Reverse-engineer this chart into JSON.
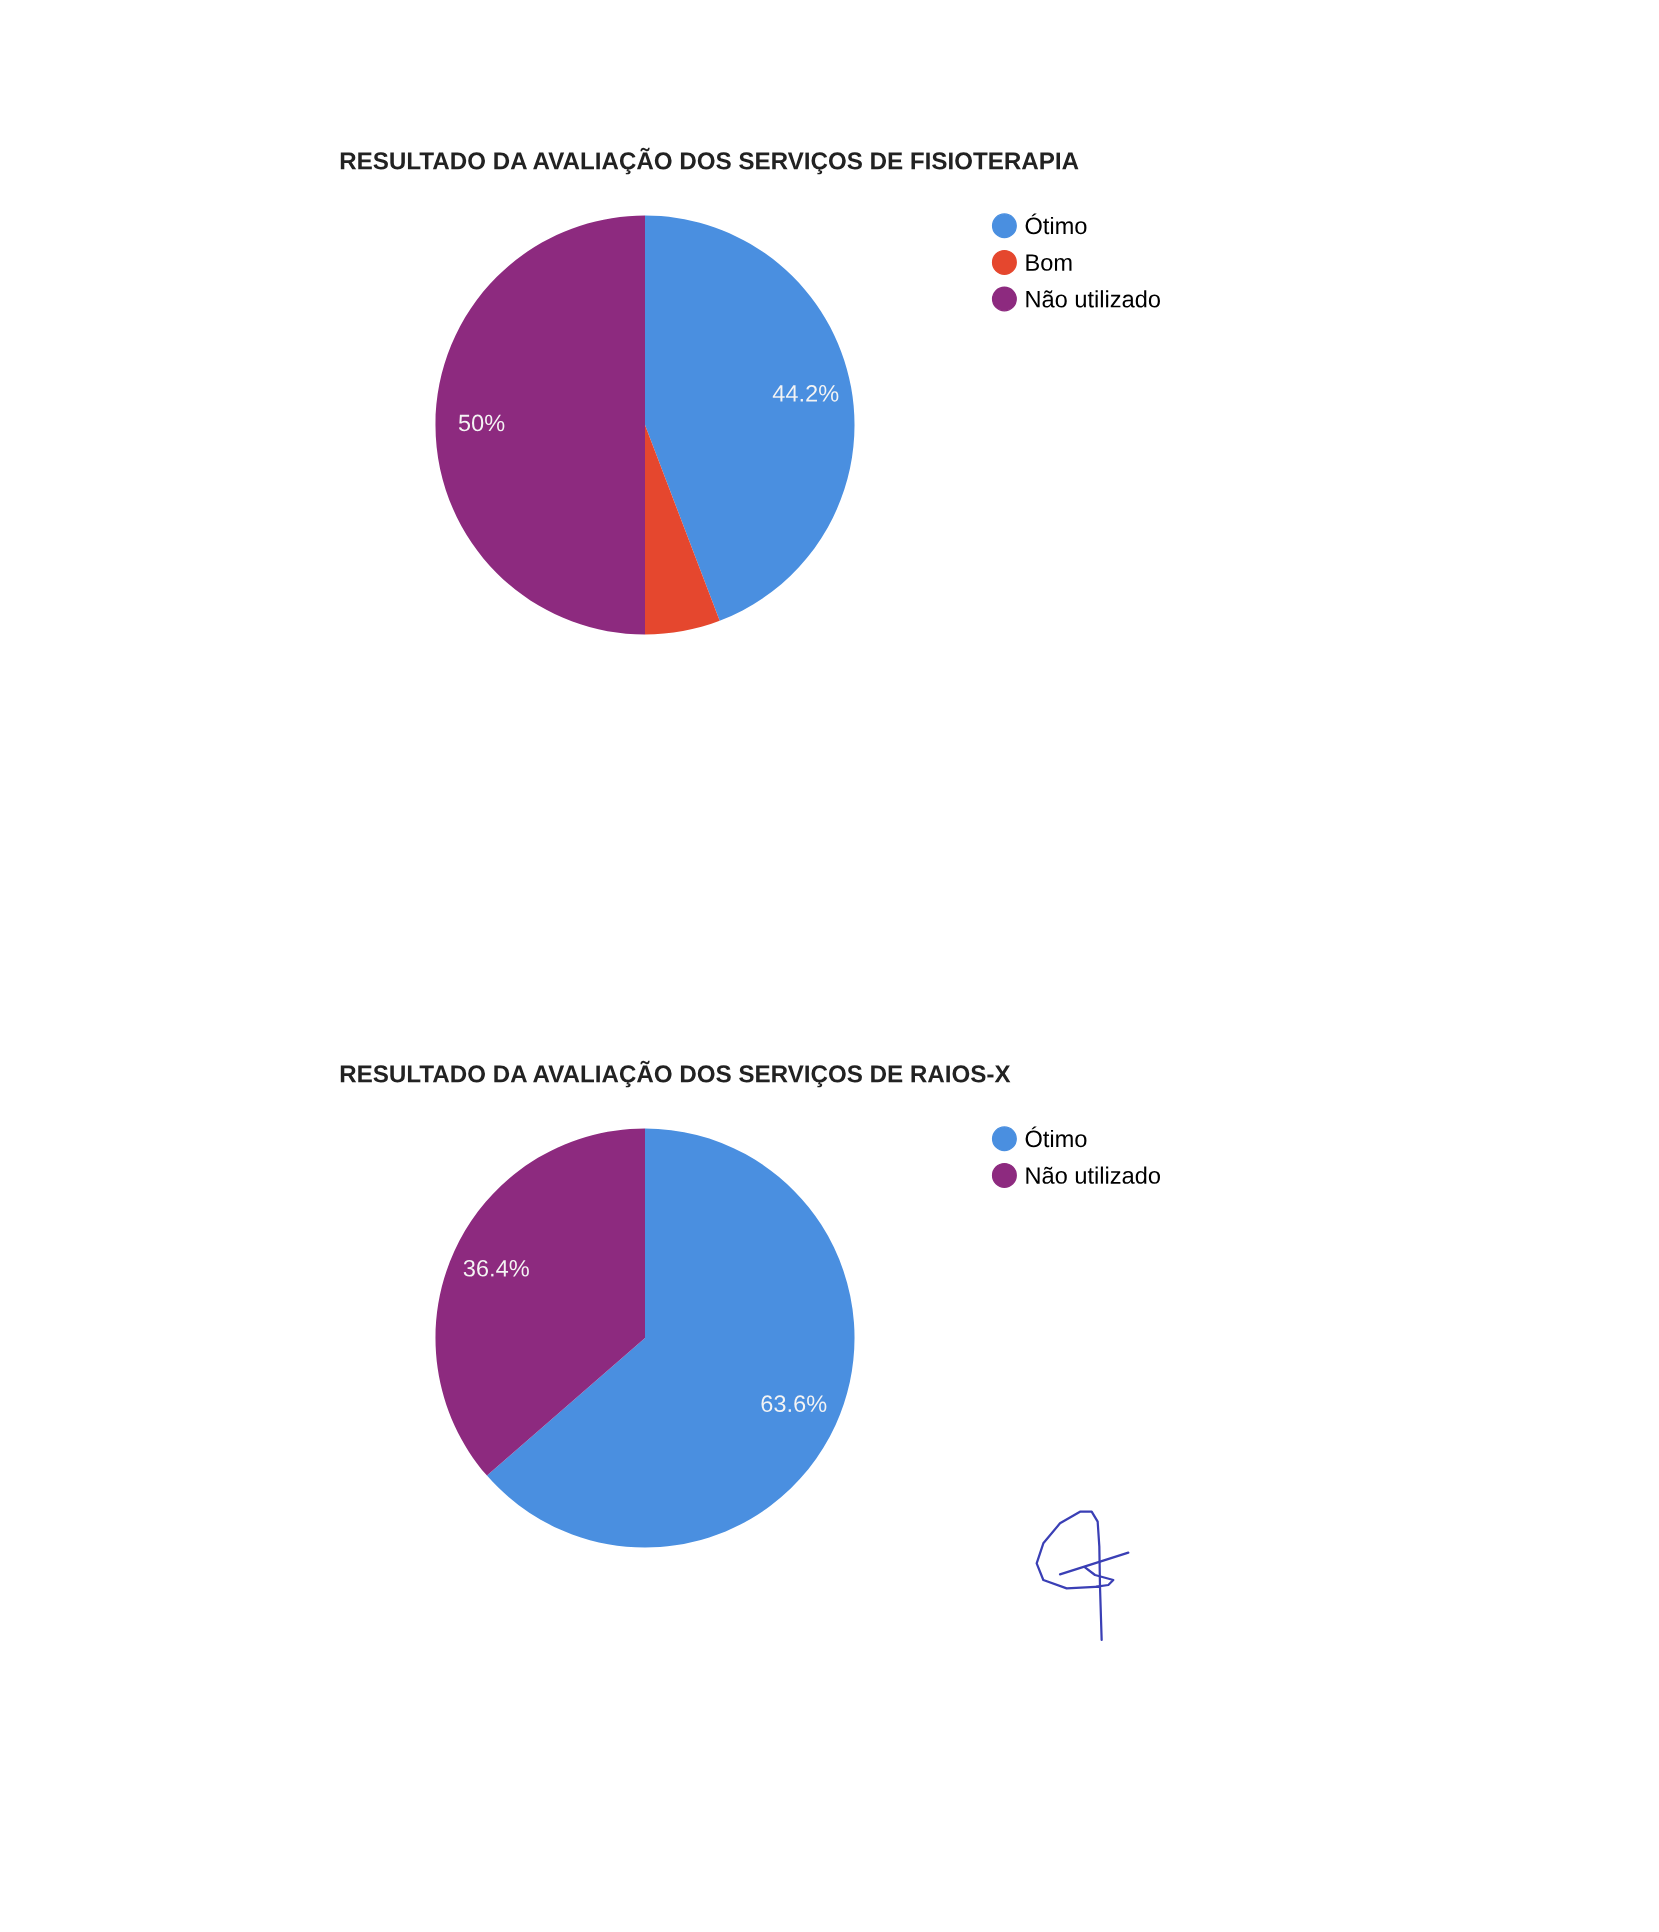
{
  "chart_data": [
    {
      "type": "pie",
      "title": "RESULTADO DA AVALIAÇÃO DOS SERVIÇOS DE FISIOTERAPIA",
      "categories": [
        "Ótimo",
        "Bom",
        "Não utilizado"
      ],
      "values": [
        44.2,
        5.8,
        50
      ],
      "colors": [
        "#4a8fe0",
        "#e5472e",
        "#8d2a7f"
      ],
      "value_labels": [
        "44.2%",
        null,
        "50%"
      ],
      "legend": "top right"
    },
    {
      "type": "pie",
      "title": "RESULTADO DA AVALIAÇÃO DOS SERVIÇOS DE RAIOS-X",
      "categories": [
        "Ótimo",
        "Não utilizado"
      ],
      "values": [
        63.6,
        36.4
      ],
      "colors": [
        "#4a8fe0",
        "#8d2a7f"
      ],
      "value_labels": [
        "63.6%",
        "36.4%"
      ],
      "legend": "top right"
    }
  ]
}
